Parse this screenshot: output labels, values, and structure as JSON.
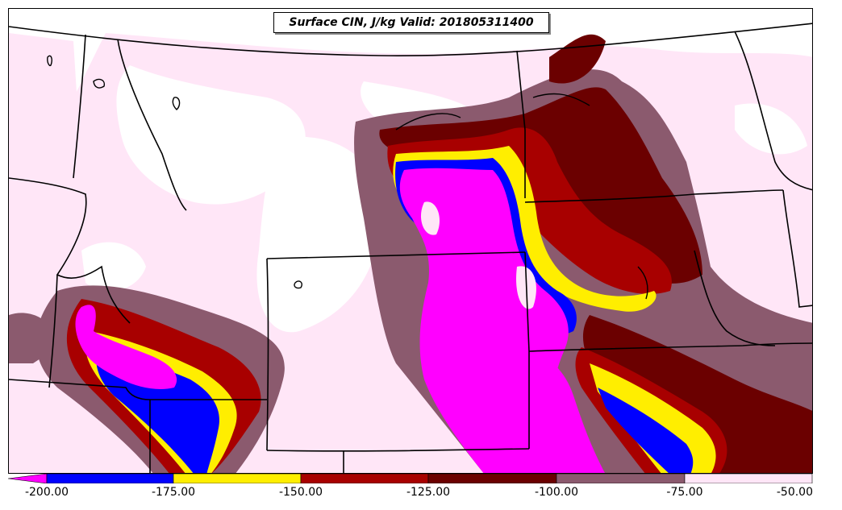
{
  "title": "Surface CIN, J/kg Valid: 201805311400",
  "colorbar": {
    "ticks": [
      "-200.00",
      "-175.00",
      "-150.00",
      "-125.00",
      "-100.00",
      "-75.00",
      "-50.00"
    ],
    "bins": [
      {
        "range": "<= -200",
        "color": "#ff00ff"
      },
      {
        "range": "-200 to -175",
        "color": "#0000ff"
      },
      {
        "range": "-175 to -150",
        "color": "#ffee00"
      },
      {
        "range": "-150 to -125",
        "color": "#a80000"
      },
      {
        "range": "-125 to -100",
        "color": "#6b0000"
      },
      {
        "range": "-100 to -75",
        "color": "#8b5a6e"
      },
      {
        "range": "-75 to -50",
        "color": "#ffe6f7"
      }
    ]
  },
  "colors": {
    "magenta": "#ff00ff",
    "blue": "#0000ff",
    "yellow": "#ffee00",
    "red": "#a80000",
    "darkred": "#6b0000",
    "mauve": "#8b5a6e",
    "pink": "#ffe6f7",
    "background": "#ffffff"
  }
}
